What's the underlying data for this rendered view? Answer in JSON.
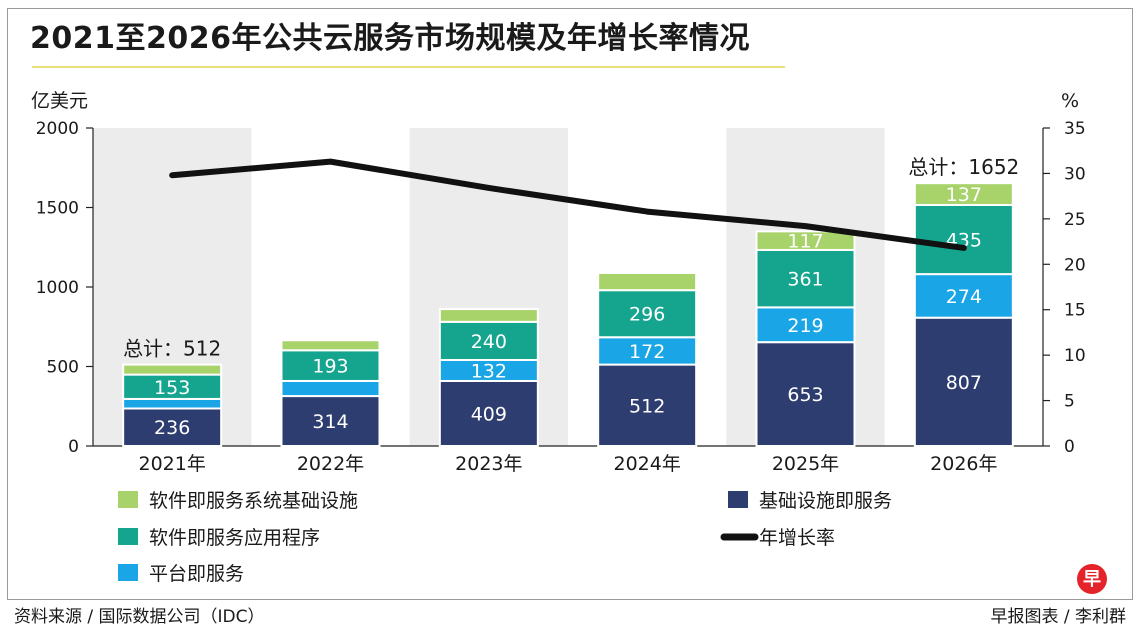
{
  "chart_data": {
    "type": "bar",
    "stacked": true,
    "title": "2021至2026年公共云服务市场规模及年增长率情况",
    "ylabel_left": "亿美元",
    "ylabel_right": "%",
    "ylim_left": [
      0,
      2000
    ],
    "yticks_left": [
      0,
      500,
      1000,
      1500,
      2000
    ],
    "ylim_right": [
      0,
      35
    ],
    "yticks_right": [
      0,
      5,
      10,
      15,
      20,
      25,
      30,
      35
    ],
    "categories": [
      "2021年",
      "2022年",
      "2023年",
      "2024年",
      "2025年",
      "2026年"
    ],
    "series": [
      {
        "name": "基础设施即服务",
        "color": "#2e3d70",
        "values": [
          236,
          314,
          409,
          512,
          653,
          807
        ],
        "labels": [
          "236",
          "314",
          "409",
          "512",
          "653",
          "807"
        ]
      },
      {
        "name": "平台即服务",
        "color": "#1aa6e6",
        "values": [
          60,
          95,
          132,
          172,
          219,
          274
        ],
        "labels": [
          "",
          "",
          "132",
          "172",
          "219",
          "274"
        ]
      },
      {
        "name": "软件即服务应用程序",
        "color": "#15a58f",
        "values": [
          153,
          193,
          240,
          296,
          361,
          435
        ],
        "labels": [
          "153",
          "193",
          "240",
          "296",
          "361",
          "435"
        ]
      },
      {
        "name": "软件即服务系统基础设施",
        "color": "#a8d26a",
        "values": [
          63,
          63,
          80,
          108,
          117,
          137
        ],
        "labels": [
          "",
          "",
          "",
          "",
          "117",
          "137"
        ]
      }
    ],
    "growth_rate": {
      "name": "年增长率",
      "color": "#111111",
      "values": [
        29.8,
        31.3,
        28.4,
        25.8,
        24.2,
        21.8
      ]
    },
    "totals": [
      {
        "index": 0,
        "label": "总计：512"
      },
      {
        "index": 5,
        "label": "总计：1652"
      }
    ],
    "shaded_columns": [
      0,
      2,
      4
    ],
    "legend": {
      "placement": "bottom"
    }
  },
  "footer": {
    "source": "资料来源 / 国际数据公司（IDC）",
    "credit": "早报图表 / 李利群"
  },
  "logo": {
    "text": "早",
    "color": "#e5232a"
  }
}
